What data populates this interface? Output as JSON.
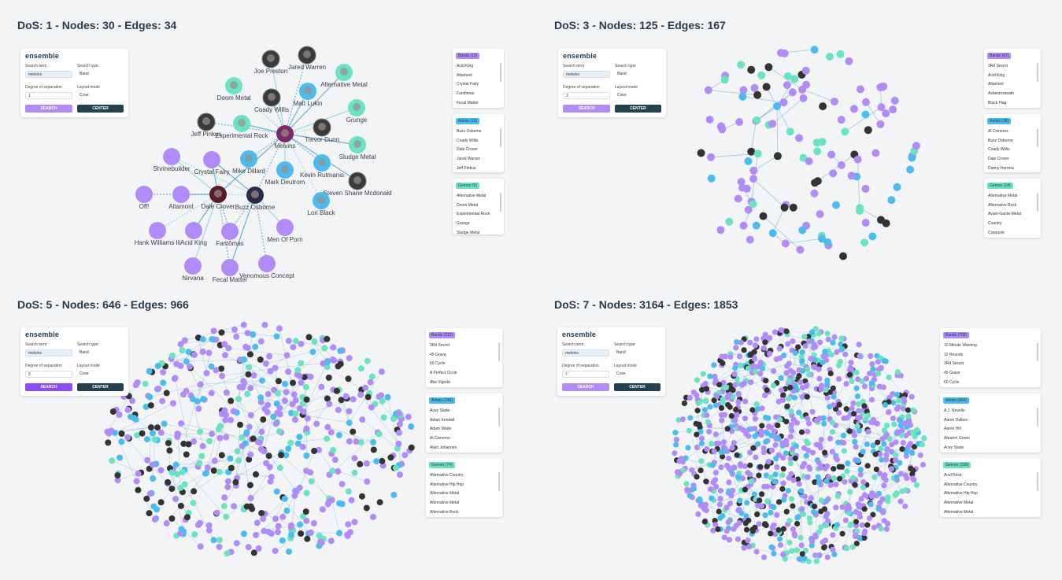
{
  "panels": [
    {
      "title": "DoS: 1 - Nodes: 30 - Edges: 34",
      "controls": {
        "brand": "ensemble",
        "search_term_label": "Search term",
        "search_term": "melvins",
        "search_type_label": "Search type",
        "search_type": "Band",
        "dos_label": "Degree of separation",
        "dos": "1",
        "layout_label": "Layout mode",
        "layout": "Cose",
        "search_button": "SEARCH",
        "center_button": "CENTER"
      },
      "lists": [
        {
          "header": "Bands (12)",
          "color": "#b18cf8",
          "items": [
            "Acid King",
            "Altamont",
            "Crystal Fairy",
            "Fantômas",
            "Fecal Matter"
          ]
        },
        {
          "header": "Artists (13)",
          "color": "#4bbcee",
          "items": [
            "Buzz Osborne",
            "Coady Willis",
            "Dale Crover",
            "Jared Warren",
            "Jeff Pinkus"
          ]
        },
        {
          "header": "Genres (5)",
          "color": "#6be3c3",
          "items": [
            "Alternative Metal",
            "Doom Metal",
            "Experimental Rock",
            "Grunge",
            "Sludge Metal"
          ]
        }
      ],
      "nodes": [
        {
          "label": "Joe Preston",
          "color": "#3a3a3a"
        },
        {
          "label": "Jared Warren",
          "color": "#3a3a3a"
        },
        {
          "label": "Alternative Metal",
          "color": "#6be3c3"
        },
        {
          "label": "Doom Metal",
          "color": "#6be3c3"
        },
        {
          "label": "Matt Lukin",
          "color": "#4bbcee"
        },
        {
          "label": "Coady Willis",
          "color": "#3a3a3a"
        },
        {
          "label": "Grunge",
          "color": "#6be3c3"
        },
        {
          "label": "Jeff Pinkus",
          "color": "#3a3a3a"
        },
        {
          "label": "Experimental Rock",
          "color": "#6be3c3"
        },
        {
          "label": "Melvins",
          "color": "#7a2a6a"
        },
        {
          "label": "Trevor Dunn",
          "color": "#3a3a3a"
        },
        {
          "label": "Sludge Metal",
          "color": "#6be3c3"
        },
        {
          "label": "Shrinebuilder",
          "color": "#b18cf8"
        },
        {
          "label": "Crystal Fairy",
          "color": "#b18cf8"
        },
        {
          "label": "Mike Dillard",
          "color": "#4bbcee"
        },
        {
          "label": "Mark Deutrom",
          "color": "#4bbcee"
        },
        {
          "label": "Kevin Rutmanis",
          "color": "#4bbcee"
        },
        {
          "label": "Steven Shane Mcdonald",
          "color": "#3a3a3a"
        },
        {
          "label": "Off!",
          "color": "#b18cf8"
        },
        {
          "label": "Altamont",
          "color": "#b18cf8"
        },
        {
          "label": "Dale Crover",
          "color": "#5a1a2a"
        },
        {
          "label": "Buzz Osborne",
          "color": "#2a2a4a"
        },
        {
          "label": "Lori Black",
          "color": "#4bbcee"
        },
        {
          "label": "Hank Williams Iii",
          "color": "#b18cf8"
        },
        {
          "label": "Acid King",
          "color": "#b18cf8"
        },
        {
          "label": "Fantômas",
          "color": "#b18cf8"
        },
        {
          "label": "Men Of Porn",
          "color": "#b18cf8"
        },
        {
          "label": "Nirvana",
          "color": "#b18cf8"
        },
        {
          "label": "Fecal Matter",
          "color": "#b18cf8"
        },
        {
          "label": "Venomous Concept",
          "color": "#b18cf8"
        }
      ]
    },
    {
      "title": "DoS: 3 - Nodes: 125 - Edges: 167",
      "controls": {
        "brand": "ensemble",
        "search_term_label": "Search term",
        "search_term": "melvins",
        "search_type_label": "Search type",
        "search_type": "Band",
        "dos_label": "Degree of separation",
        "dos": "3",
        "layout_label": "Layout mode",
        "layout": "Cose",
        "search_button": "SEARCH",
        "center_button": "CENTER"
      },
      "lists": [
        {
          "header": "Bands (67)",
          "color": "#b18cf8",
          "items": [
            "3Rd Secret",
            "Acid King",
            "Altamont",
            "Asbestosdeath",
            "Black Flag"
          ]
        },
        {
          "header": "Artists (38)",
          "color": "#4bbcee",
          "items": [
            "Al Cisneros",
            "Buzz Osborne",
            "Coady Willis",
            "Dale Crover",
            "Danny Herrera"
          ]
        },
        {
          "header": "Genres (24)",
          "color": "#6be3c3",
          "items": [
            "Alternative Metal",
            "Alternative Rock",
            "Avant-Garde Metal",
            "Country",
            "Cowpunk"
          ]
        }
      ]
    },
    {
      "title": "DoS: 5 - Nodes: 646 - Edges: 966",
      "controls": {
        "brand": "ensemble",
        "search_term_label": "Search term",
        "search_term": "melvins",
        "search_type_label": "Search type",
        "search_type": "Band",
        "dos_label": "Degree of separation",
        "dos": "5",
        "layout_label": "Layout mode",
        "layout": "Cose",
        "search_button": "SEARCH",
        "center_button": "CENTER"
      },
      "lists": [
        {
          "header": "Bands (232)",
          "color": "#b18cf8",
          "items": [
            "3Rd Secret",
            "45 Grave",
            "60 Cycle",
            "A Perfect Circle",
            "Abe Vigoda"
          ]
        },
        {
          "header": "Artists (246)",
          "color": "#4bbcee",
          "items": [
            "Acey Slade",
            "Adam Kendall",
            "Adam Wade",
            "Al Cisneros",
            "Alain Johannes"
          ]
        },
        {
          "header": "Genres (74)",
          "color": "#6be3c3",
          "items": [
            "Alternative Country",
            "Alternative Hip Hop",
            "Alternative Metal",
            "Alternative Metal",
            "Alternative Rock"
          ]
        }
      ]
    },
    {
      "title": "DoS: 7 - Nodes: 3164 - Edges: 1853",
      "controls": {
        "brand": "ensemble",
        "search_term_label": "Search term",
        "search_term": "melvins",
        "search_type_label": "Search type",
        "search_type": "Band",
        "dos_label": "Degree of separation",
        "dos": "7",
        "layout_label": "Layout mode",
        "layout": "Cose",
        "search_button": "SEARCH",
        "center_button": "CENTER"
      },
      "lists": [
        {
          "header": "Bands (768)",
          "color": "#b18cf8",
          "items": [
            "10 Minute Warning",
            "12 Rounds",
            "3Rd Secret",
            "45 Grave",
            "60 Cycle"
          ]
        },
        {
          "header": "Artists (964)",
          "color": "#4bbcee",
          "items": [
            "A.J. Novello",
            "Aaron Dalbec",
            "Aaron Hill",
            "Abrahm Green",
            "Acey Slade"
          ]
        },
        {
          "header": "Genres (199)",
          "color": "#6be3c3",
          "items": [
            "Acid Rock",
            "Alternative Country",
            "Alternative Hip Hop",
            "Alternative Metal",
            "Alternative Metal"
          ]
        }
      ]
    }
  ]
}
